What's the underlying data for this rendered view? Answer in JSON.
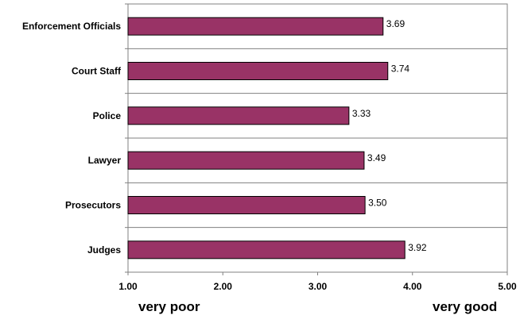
{
  "chart_data": {
    "type": "bar",
    "orientation": "horizontal",
    "categories": [
      "Enforcement Officials",
      "Court Staff",
      "Police",
      "Lawyer",
      "Prosecutors",
      "Judges"
    ],
    "values": [
      3.69,
      3.74,
      3.33,
      3.49,
      3.5,
      3.92
    ],
    "value_labels": [
      "3.69",
      "3.74",
      "3.33",
      "3.49",
      "3.50",
      "3.92"
    ],
    "xlim": [
      1.0,
      5.0
    ],
    "x_ticks": [
      1.0,
      2.0,
      3.0,
      4.0,
      5.0
    ],
    "x_tick_labels": [
      "1.00",
      "2.00",
      "3.00",
      "4.00",
      "5.00"
    ],
    "scale_low_label": "very poor",
    "scale_high_label": "very good",
    "grid": "horizontal category separators",
    "legend": "none",
    "bar_color": "#993366"
  }
}
